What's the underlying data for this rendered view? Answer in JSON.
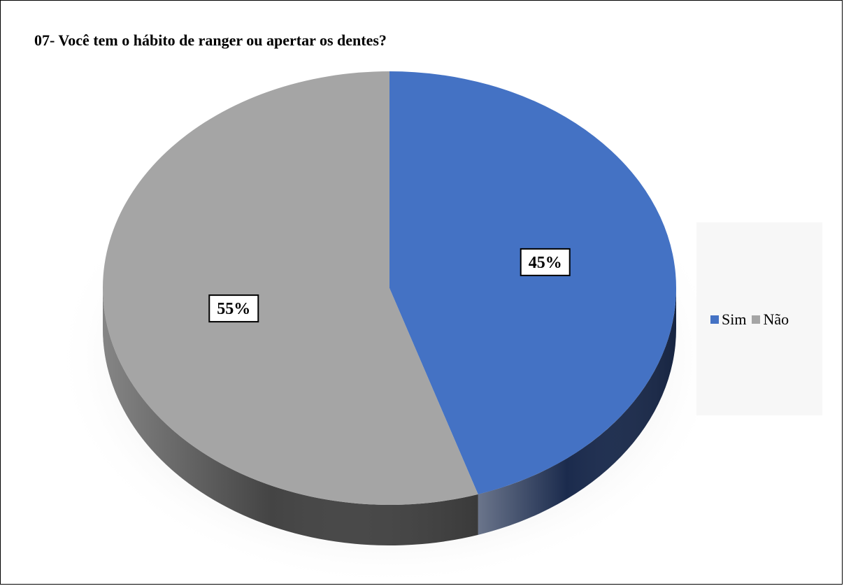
{
  "chart_data": {
    "type": "pie",
    "title": "07- Você tem o hábito de ranger ou apertar os dentes?",
    "slices": [
      {
        "label": "Sim",
        "value": 45,
        "display": "45%",
        "color": "#4472c4",
        "side_color": "#1b2b4d"
      },
      {
        "label": "Não",
        "value": 55,
        "display": "55%",
        "color": "#a5a5a5",
        "side_color": "#444444"
      }
    ],
    "legend_position": "right",
    "style": "3d"
  }
}
